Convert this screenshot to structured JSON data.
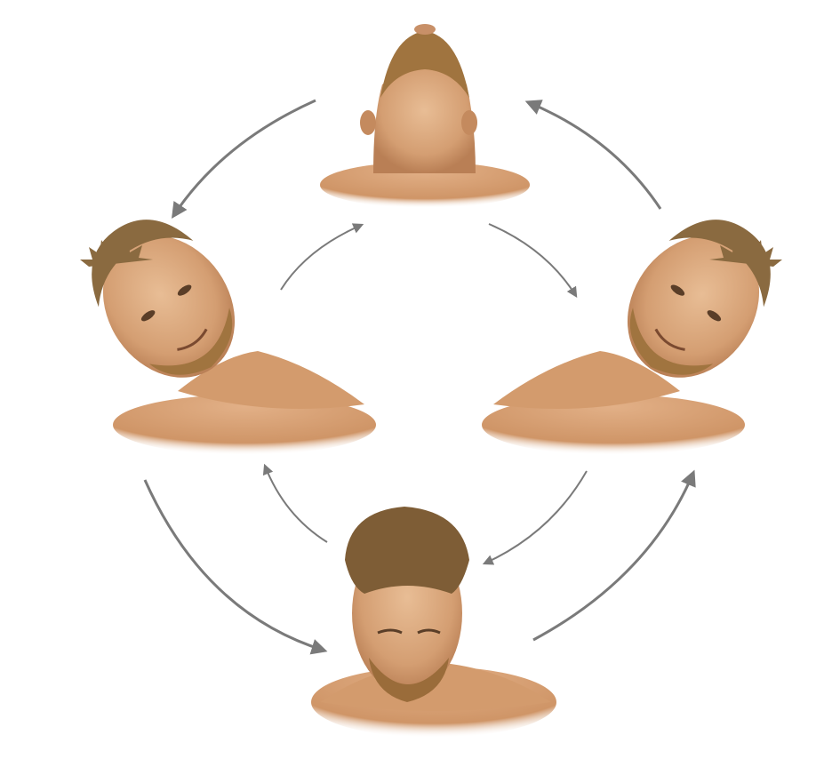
{
  "diagram": {
    "title": "",
    "positions": [
      {
        "id": "head-up",
        "label": ""
      },
      {
        "id": "head-tilt-right",
        "label": ""
      },
      {
        "id": "head-down",
        "label": ""
      },
      {
        "id": "head-tilt-left",
        "label": ""
      }
    ],
    "arrows": {
      "outer_cycle": [
        "head-up",
        "head-tilt-right",
        "head-down",
        "head-tilt-left",
        "head-up"
      ],
      "inner_cycle": [
        "head-tilt-right",
        "head-up",
        "head-tilt-left",
        "head-down",
        "head-tilt-right"
      ]
    },
    "colors": {
      "arrow": "#7a7a7a",
      "skin": "#d9a77c",
      "skin_shadow": "#b97f55",
      "hair": "#8a6a40",
      "beard": "#a0743f",
      "background": "#ffffff"
    }
  }
}
